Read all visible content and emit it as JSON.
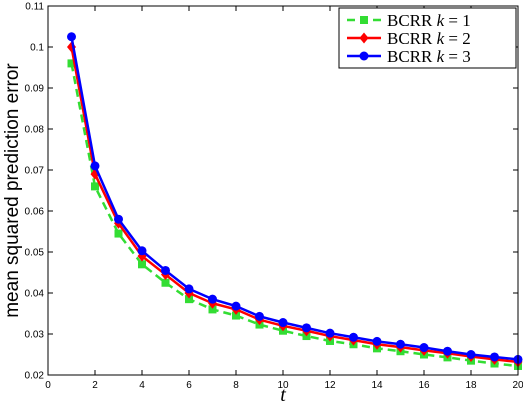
{
  "chart_data": {
    "type": "line",
    "xlabel": "t",
    "ylabel": "mean squared prediction error",
    "xlim": [
      0,
      20
    ],
    "ylim": [
      0.02,
      0.11
    ],
    "xticks": [
      0,
      2,
      4,
      6,
      8,
      10,
      12,
      14,
      16,
      18,
      20
    ],
    "yticks": [
      0.02,
      0.03,
      0.04,
      0.05,
      0.06,
      0.07,
      0.08,
      0.09,
      0.1,
      0.11
    ],
    "xtick_labels": [
      "0",
      "2",
      "4",
      "6",
      "8",
      "10",
      "12",
      "14",
      "16",
      "18",
      "20"
    ],
    "ytick_labels": [
      "0.02",
      "0.03",
      "0.04",
      "0.05",
      "0.06",
      "0.07",
      "0.08",
      "0.09",
      "0.1",
      "0.11"
    ],
    "legend_position": "top-right",
    "grid": false,
    "x": [
      1,
      2,
      3,
      4,
      5,
      6,
      7,
      8,
      9,
      10,
      11,
      12,
      13,
      14,
      15,
      16,
      17,
      18,
      19,
      20
    ],
    "series": [
      {
        "name": "BCRR k = 1",
        "label_prefix": "BCRR ",
        "label_k": "k",
        "label_suffix": " = 1",
        "color": "#33dd33",
        "marker": "square",
        "dash": true,
        "values": [
          0.096,
          0.066,
          0.0545,
          0.047,
          0.0425,
          0.0385,
          0.036,
          0.0345,
          0.0323,
          0.0308,
          0.0295,
          0.0283,
          0.0275,
          0.0265,
          0.0258,
          0.025,
          0.0243,
          0.0235,
          0.0228,
          0.0222
        ]
      },
      {
        "name": "BCRR k = 2",
        "label_prefix": "BCRR ",
        "label_k": "k",
        "label_suffix": " = 2",
        "color": "#ff0000",
        "marker": "diamond",
        "dash": false,
        "values": [
          0.1,
          0.069,
          0.057,
          0.049,
          0.0445,
          0.04,
          0.0375,
          0.036,
          0.0335,
          0.032,
          0.0308,
          0.0295,
          0.0285,
          0.0275,
          0.0268,
          0.026,
          0.0253,
          0.0245,
          0.0238,
          0.0232
        ]
      },
      {
        "name": "BCRR k = 3",
        "label_prefix": "BCRR ",
        "label_k": "k",
        "label_suffix": " = 3",
        "color": "#0000ff",
        "marker": "circle",
        "dash": false,
        "values": [
          0.1025,
          0.071,
          0.058,
          0.0503,
          0.0455,
          0.041,
          0.0385,
          0.0368,
          0.0343,
          0.0328,
          0.0315,
          0.0302,
          0.0292,
          0.0282,
          0.0275,
          0.0267,
          0.0258,
          0.025,
          0.0244,
          0.0238
        ]
      }
    ]
  }
}
